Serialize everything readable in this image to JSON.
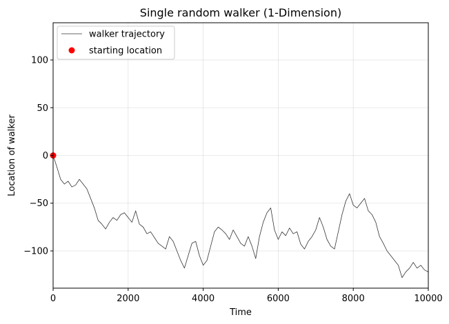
{
  "chart_data": {
    "type": "line",
    "title": "Single random walker (1-Dimension)",
    "xlabel": "Time",
    "ylabel": "Location of walker",
    "xlim": [
      0,
      10000
    ],
    "ylim": [
      -139,
      139
    ],
    "xticks": [
      0,
      2000,
      4000,
      6000,
      8000,
      10000
    ],
    "xtick_labels": [
      "0",
      "2000",
      "4000",
      "6000",
      "8000",
      "10000"
    ],
    "yticks": [
      -100,
      -50,
      0,
      50,
      100
    ],
    "ytick_labels": [
      "−100",
      "−50",
      "0",
      "50",
      "100"
    ],
    "grid": true,
    "legend_position": "top-left",
    "series": [
      {
        "name": "walker trajectory",
        "kind": "line",
        "color": "#333333",
        "x": [
          0,
          100,
          200,
          300,
          400,
          500,
          600,
          700,
          800,
          900,
          1000,
          1100,
          1200,
          1300,
          1400,
          1500,
          1600,
          1700,
          1800,
          1900,
          2000,
          2100,
          2200,
          2300,
          2400,
          2500,
          2600,
          2700,
          2800,
          2900,
          3000,
          3100,
          3200,
          3300,
          3400,
          3500,
          3600,
          3700,
          3800,
          3900,
          4000,
          4100,
          4200,
          4300,
          4400,
          4500,
          4600,
          4700,
          4800,
          4900,
          5000,
          5100,
          5200,
          5300,
          5400,
          5500,
          5600,
          5700,
          5800,
          5900,
          6000,
          6100,
          6200,
          6300,
          6400,
          6500,
          6600,
          6700,
          6800,
          6900,
          7000,
          7100,
          7200,
          7300,
          7400,
          7500,
          7600,
          7700,
          7800,
          7900,
          8000,
          8100,
          8200,
          8300,
          8400,
          8500,
          8600,
          8700,
          8800,
          8900,
          9000,
          9100,
          9200,
          9300,
          9400,
          9500,
          9600,
          9700,
          9800,
          9900,
          10000
        ],
        "y": [
          0,
          -12,
          -25,
          -30,
          -27,
          -33,
          -31,
          -25,
          -30,
          -35,
          -45,
          -55,
          -68,
          -72,
          -77,
          -70,
          -65,
          -68,
          -62,
          -60,
          -65,
          -70,
          -58,
          -72,
          -75,
          -82,
          -80,
          -86,
          -92,
          -95,
          -98,
          -85,
          -90,
          -100,
          -110,
          -118,
          -105,
          -92,
          -90,
          -105,
          -115,
          -110,
          -95,
          -80,
          -75,
          -78,
          -82,
          -88,
          -78,
          -85,
          -92,
          -95,
          -85,
          -95,
          -108,
          -85,
          -70,
          -60,
          -55,
          -78,
          -88,
          -80,
          -84,
          -76,
          -82,
          -80,
          -93,
          -98,
          -90,
          -85,
          -78,
          -65,
          -75,
          -88,
          -95,
          -98,
          -80,
          -62,
          -48,
          -40,
          -52,
          -55,
          -50,
          -45,
          -58,
          -62,
          -70,
          -85,
          -92,
          -100,
          -105,
          -110,
          -115,
          -128,
          -122,
          -118,
          -112,
          -118,
          -115,
          -120,
          -122
        ]
      },
      {
        "name": "starting location",
        "kind": "scatter",
        "color": "#ff0000",
        "x": [
          0
        ],
        "y": [
          0
        ]
      }
    ]
  }
}
